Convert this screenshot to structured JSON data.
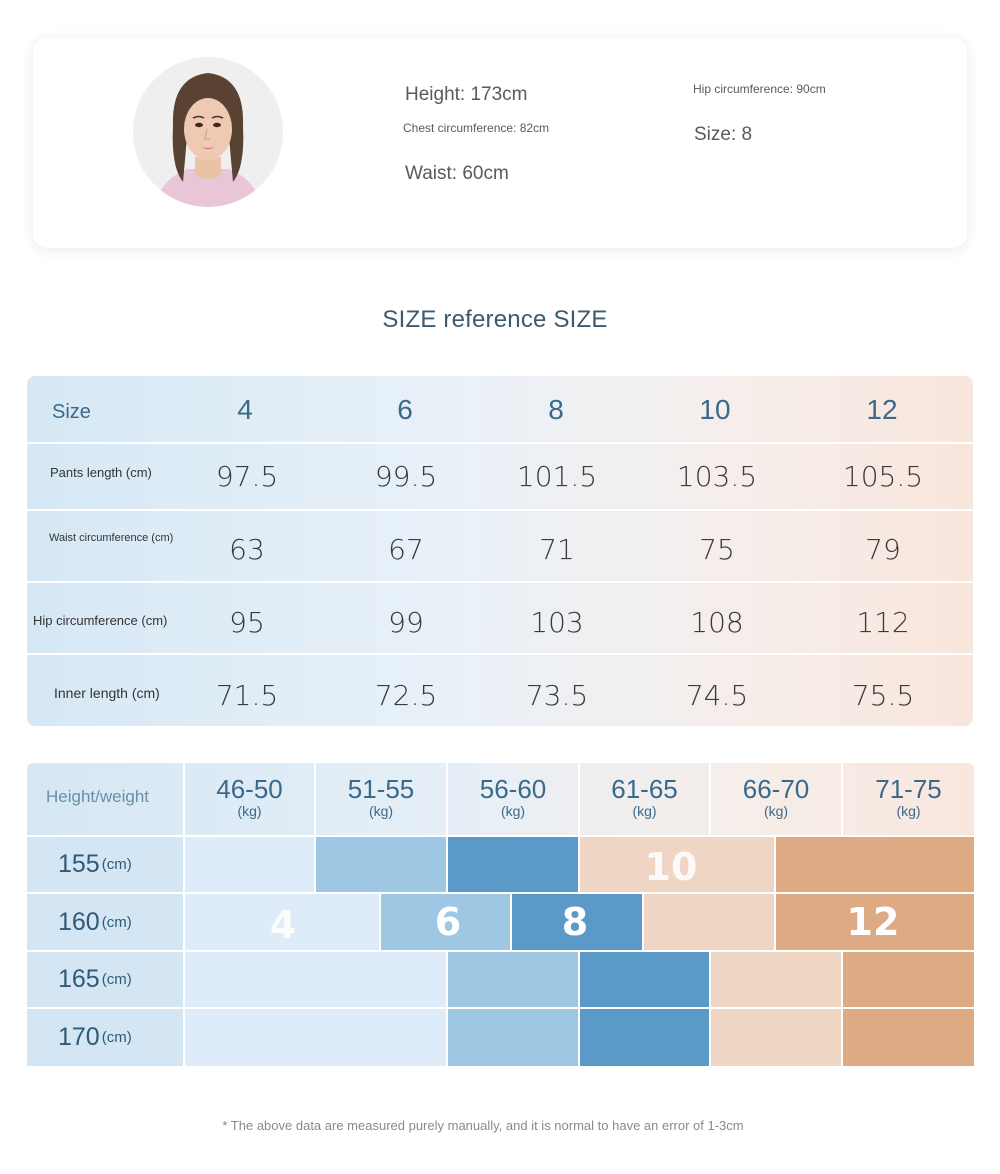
{
  "model": {
    "height": "Height: 173cm",
    "chest": "Chest circumference: 82cm",
    "waist": "Waist: 60cm",
    "hip": "Hip circumference: 90cm",
    "size": "Size: 8"
  },
  "size_reference": {
    "title": "SIZE reference SIZE",
    "header_label": "Size",
    "sizes": [
      "4",
      "6",
      "8",
      "10",
      "12"
    ],
    "rows": [
      {
        "label": "Pants length (cm)",
        "values": [
          "97.5",
          "99.5",
          "101.5",
          "103.5",
          "105.5"
        ]
      },
      {
        "label": "Waist circumference (cm)",
        "values": [
          "63",
          "67",
          "71",
          "75",
          "79"
        ]
      },
      {
        "label": "Hip circumference (cm)",
        "values": [
          "95",
          "99",
          "103",
          "108",
          "112"
        ]
      },
      {
        "label": "Inner length (cm)",
        "values": [
          "71.5",
          "72.5",
          "73.5",
          "74.5",
          "75.5"
        ]
      }
    ]
  },
  "height_weight": {
    "corner_label": "Height/weight",
    "weights": [
      {
        "range": "46-50",
        "unit": "(kg)"
      },
      {
        "range": "51-55",
        "unit": "(kg)"
      },
      {
        "range": "56-60",
        "unit": "(kg)"
      },
      {
        "range": "61-65",
        "unit": "(kg)"
      },
      {
        "range": "66-70",
        "unit": "(kg)"
      },
      {
        "range": "71-75",
        "unit": "(kg)"
      }
    ],
    "heights": [
      {
        "value": "155",
        "unit": "(cm)"
      },
      {
        "value": "160",
        "unit": "(cm)"
      },
      {
        "value": "165",
        "unit": "(cm)"
      },
      {
        "value": "170",
        "unit": "(cm)"
      }
    ],
    "size_marks": {
      "s4": "4",
      "s6": "6",
      "s8": "8",
      "s10": "10",
      "s12": "12"
    },
    "colors": {
      "size_4": "#ddecf8",
      "size_6": "#9ec7e4",
      "size_8": "#5b9ac8",
      "size_10": "#efd6c4",
      "size_12": "#deaa83"
    }
  },
  "footnote": "* The above data are measured purely manually, and it is normal to have an error of 1-3cm"
}
